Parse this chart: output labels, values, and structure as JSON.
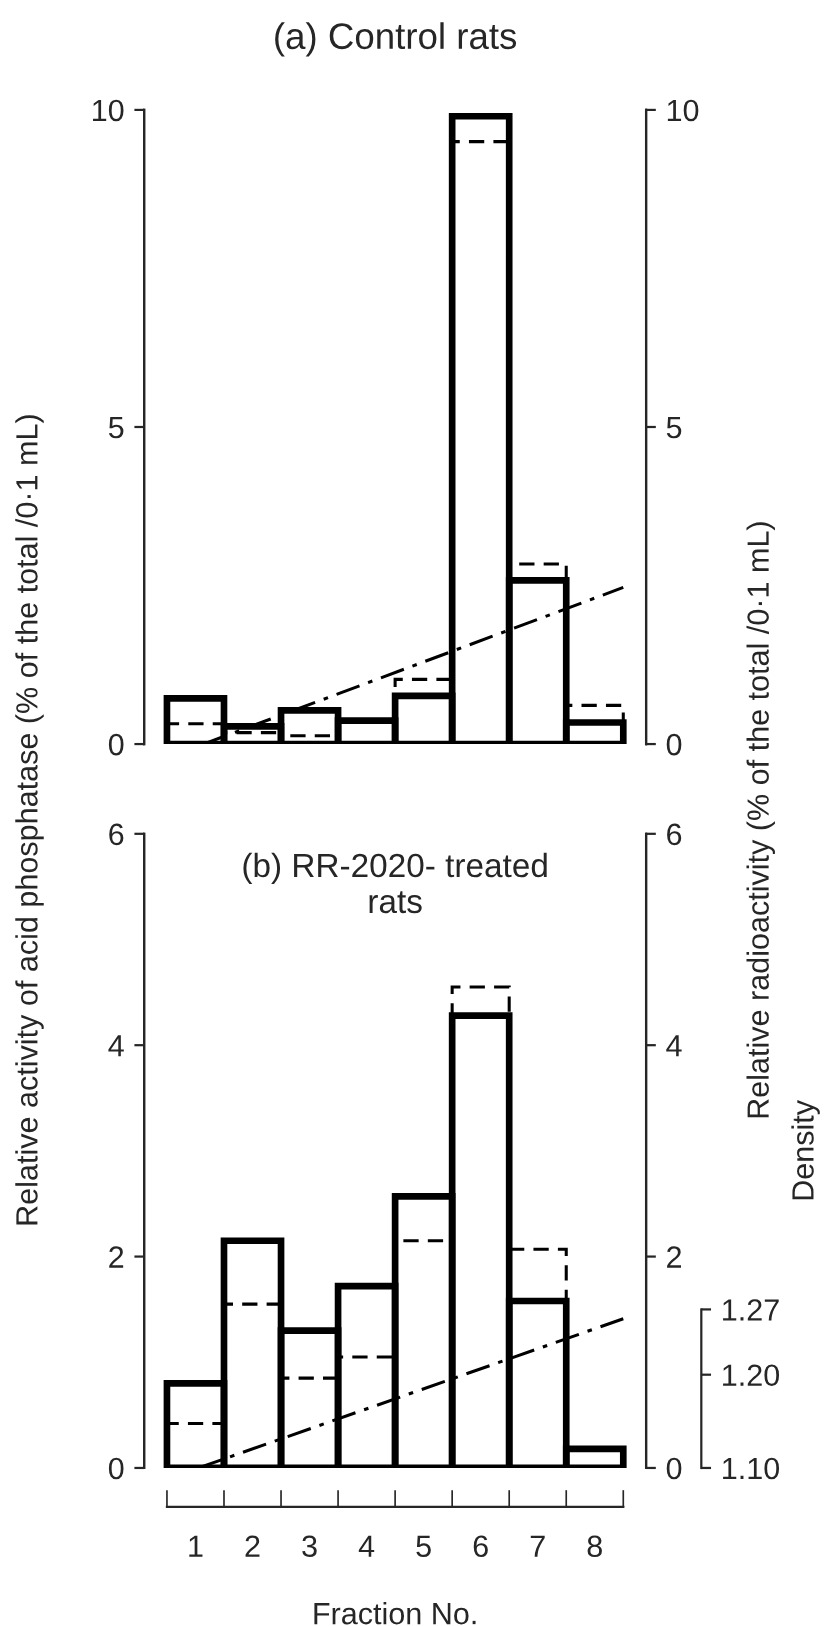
{
  "chart_data": [
    {
      "type": "histogram",
      "title": "(a) Control rats",
      "ylabel": "Relative activity of acid phosphatase (% of the total /0·1 mL)",
      "y2label": "Relative radioactivity (% of the total /0·1 mL)",
      "bins": [
        0.5,
        1.5,
        2.5,
        3.5,
        4.5,
        5.5,
        6.5,
        7.5,
        8.5
      ],
      "xlim": [
        0.1,
        8.9
      ],
      "ylim": [
        0,
        10
      ],
      "yticks": [
        0,
        5,
        10
      ],
      "y2lim": [
        0,
        10
      ],
      "y2ticks": [
        0,
        5,
        10
      ],
      "grid": false,
      "legend": false,
      "series": [
        {
          "color": "#000000",
          "line_style": "solid",
          "values": [
            0.72,
            0.28,
            0.53,
            0.37,
            0.76,
            9.9,
            2.58,
            0.34
          ]
        },
        {
          "axis": "y2",
          "color": "#000000",
          "line_style": "dashed",
          "values": [
            0.32,
            0.18,
            0.13,
            null,
            1.02,
            9.5,
            2.84,
            0.61
          ]
        },
        {
          "type": "line",
          "color": "#000000",
          "line_style": "dashdot",
          "x": [
            1.14,
            8.5
          ],
          "values": [
            0,
            2.47
          ]
        }
      ]
    },
    {
      "type": "histogram",
      "title": "(b) RR-2020- treated\nrats",
      "xlabel": "Fraction No.",
      "y3label": "Density",
      "bins": [
        0.5,
        1.5,
        2.5,
        3.5,
        4.5,
        5.5,
        6.5,
        7.5,
        8.5
      ],
      "xlim": [
        0.1,
        8.9
      ],
      "xticks": [
        1,
        2,
        3,
        4,
        5,
        6,
        7,
        8
      ],
      "ylim": [
        0,
        6
      ],
      "yticks": [
        0,
        2,
        4,
        6
      ],
      "y2lim": [
        0,
        6
      ],
      "y2ticks": [
        0,
        2,
        4,
        6
      ],
      "y3lim": [
        1.1,
        1.78
      ],
      "y3ticks": [
        {
          "value": 1.1,
          "label": "1.10"
        },
        {
          "value": 1.2,
          "label": "1.20"
        },
        1.27
      ],
      "grid": false,
      "legend": false,
      "series": [
        {
          "color": "#000000",
          "line_style": "solid",
          "values": [
            0.8,
            2.15,
            1.3,
            1.72,
            2.57,
            4.28,
            1.58,
            0.18
          ]
        },
        {
          "axis": "y2",
          "color": "#000000",
          "line_style": "dashed",
          "values": [
            0.42,
            1.55,
            0.85,
            1.05,
            2.15,
            4.55,
            2.07,
            null
          ]
        },
        {
          "type": "line",
          "axis": "y3",
          "color": "#000000",
          "line_style": "dashdot",
          "x": [
            1.05,
            8.5
          ],
          "values": [
            1.1,
            1.26
          ]
        }
      ]
    }
  ]
}
